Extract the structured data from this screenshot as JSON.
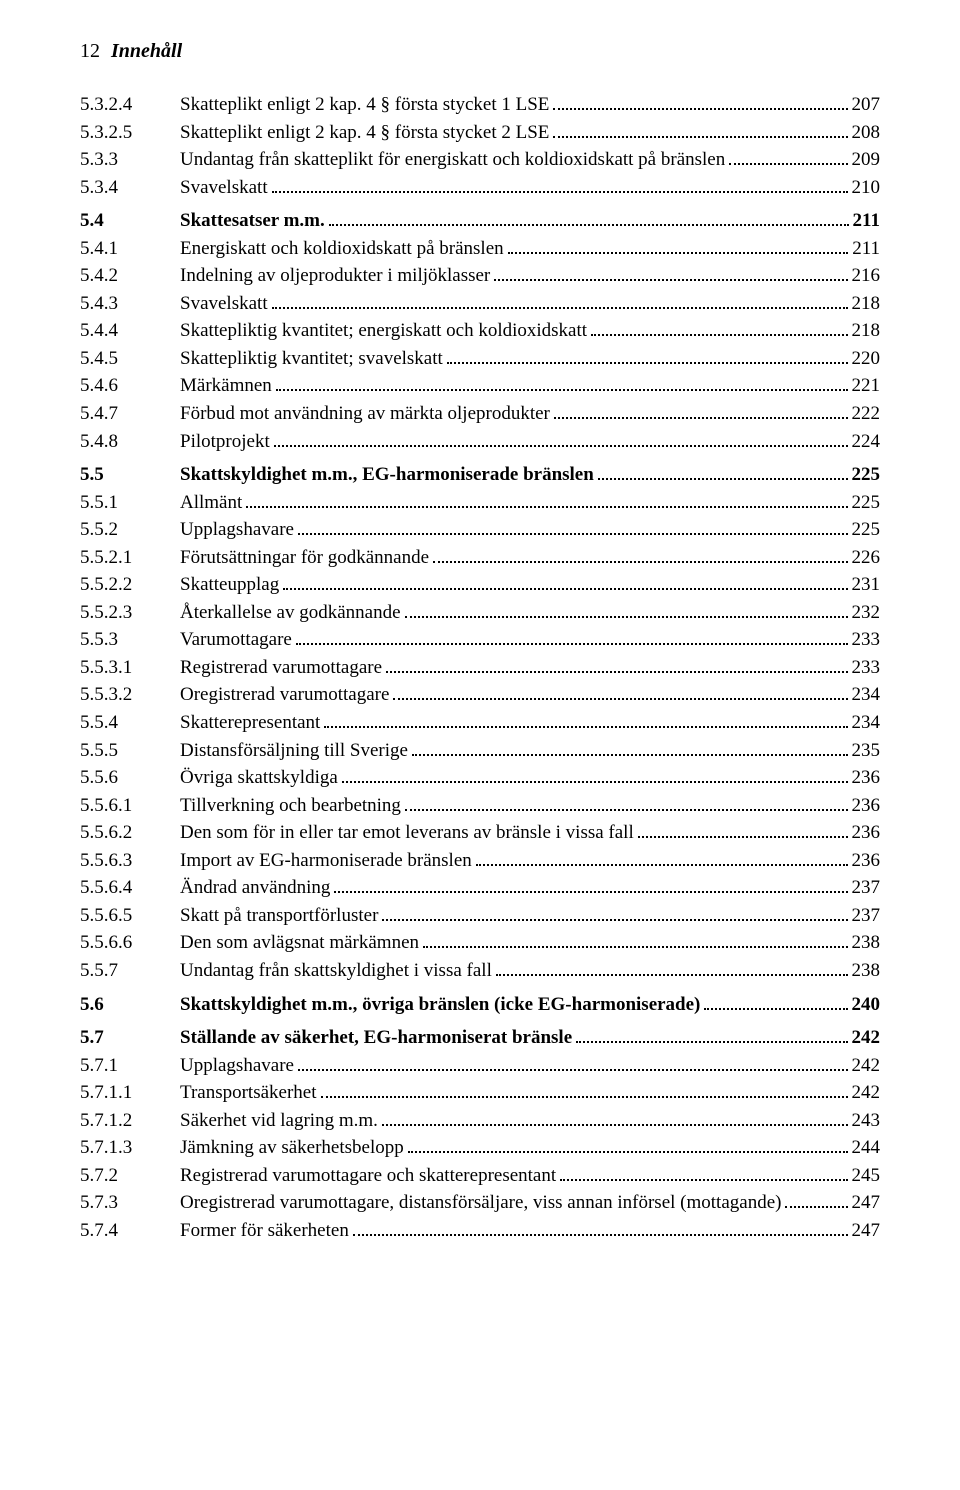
{
  "header": {
    "page_number": "12",
    "title": "Innehåll"
  },
  "toc": [
    {
      "num": "5.3.2.4",
      "title": "Skatteplikt enligt 2 kap. 4 § första stycket 1 LSE",
      "page": "207",
      "bold": false,
      "gap_before": false
    },
    {
      "num": "5.3.2.5",
      "title": "Skatteplikt enligt 2 kap. 4 § första stycket 2 LSE",
      "page": "208",
      "bold": false,
      "gap_before": false
    },
    {
      "num": "5.3.3",
      "title": "Undantag från skatteplikt för energiskatt och koldioxidskatt på bränslen",
      "page": "209",
      "bold": false,
      "gap_before": false
    },
    {
      "num": "5.3.4",
      "title": "Svavelskatt",
      "page": "210",
      "bold": false,
      "gap_before": false
    },
    {
      "num": "5.4",
      "title": "Skattesatser m.m.",
      "page": "211",
      "bold": true,
      "gap_before": true
    },
    {
      "num": "5.4.1",
      "title": "Energiskatt och koldioxidskatt på bränslen",
      "page": "211",
      "bold": false,
      "gap_before": false
    },
    {
      "num": "5.4.2",
      "title": "Indelning av oljeprodukter i miljöklasser",
      "page": "216",
      "bold": false,
      "gap_before": false
    },
    {
      "num": "5.4.3",
      "title": "Svavelskatt",
      "page": "218",
      "bold": false,
      "gap_before": false
    },
    {
      "num": "5.4.4",
      "title": "Skattepliktig kvantitet; energiskatt och koldioxidskatt",
      "page": "218",
      "bold": false,
      "gap_before": false
    },
    {
      "num": "5.4.5",
      "title": "Skattepliktig kvantitet; svavelskatt",
      "page": "220",
      "bold": false,
      "gap_before": false
    },
    {
      "num": "5.4.6",
      "title": "Märkämnen",
      "page": "221",
      "bold": false,
      "gap_before": false
    },
    {
      "num": "5.4.7",
      "title": "Förbud mot användning av märkta oljeprodukter",
      "page": "222",
      "bold": false,
      "gap_before": false
    },
    {
      "num": "5.4.8",
      "title": "Pilotprojekt",
      "page": "224",
      "bold": false,
      "gap_before": false
    },
    {
      "num": "5.5",
      "title": "Skattskyldighet m.m., EG-harmoniserade bränslen",
      "page": "225",
      "bold": true,
      "gap_before": true
    },
    {
      "num": "5.5.1",
      "title": "Allmänt",
      "page": "225",
      "bold": false,
      "gap_before": false
    },
    {
      "num": "5.5.2",
      "title": "Upplagshavare",
      "page": "225",
      "bold": false,
      "gap_before": false
    },
    {
      "num": "5.5.2.1",
      "title": "Förutsättningar för godkännande",
      "page": "226",
      "bold": false,
      "gap_before": false
    },
    {
      "num": "5.5.2.2",
      "title": "Skatteupplag",
      "page": "231",
      "bold": false,
      "gap_before": false
    },
    {
      "num": "5.5.2.3",
      "title": "Återkallelse av godkännande",
      "page": "232",
      "bold": false,
      "gap_before": false
    },
    {
      "num": "5.5.3",
      "title": "Varumottagare",
      "page": "233",
      "bold": false,
      "gap_before": false
    },
    {
      "num": "5.5.3.1",
      "title": "Registrerad varumottagare",
      "page": "233",
      "bold": false,
      "gap_before": false
    },
    {
      "num": "5.5.3.2",
      "title": "Oregistrerad varumottagare",
      "page": "234",
      "bold": false,
      "gap_before": false
    },
    {
      "num": "5.5.4",
      "title": "Skatterepresentant",
      "page": "234",
      "bold": false,
      "gap_before": false
    },
    {
      "num": "5.5.5",
      "title": "Distansförsäljning till Sverige",
      "page": "235",
      "bold": false,
      "gap_before": false
    },
    {
      "num": "5.5.6",
      "title": "Övriga skattskyldiga",
      "page": "236",
      "bold": false,
      "gap_before": false
    },
    {
      "num": "5.5.6.1",
      "title": "Tillverkning och bearbetning",
      "page": "236",
      "bold": false,
      "gap_before": false
    },
    {
      "num": "5.5.6.2",
      "title": "Den som för in eller tar emot leverans av bränsle i vissa fall",
      "page": "236",
      "bold": false,
      "gap_before": false
    },
    {
      "num": "5.5.6.3",
      "title": "Import av EG-harmoniserade bränslen",
      "page": "236",
      "bold": false,
      "gap_before": false
    },
    {
      "num": "5.5.6.4",
      "title": "Ändrad användning",
      "page": "237",
      "bold": false,
      "gap_before": false
    },
    {
      "num": "5.5.6.5",
      "title": "Skatt på transportförluster",
      "page": "237",
      "bold": false,
      "gap_before": false
    },
    {
      "num": "5.5.6.6",
      "title": "Den som avlägsnat märkämnen",
      "page": "238",
      "bold": false,
      "gap_before": false
    },
    {
      "num": "5.5.7",
      "title": "Undantag från skattskyldighet i vissa fall",
      "page": "238",
      "bold": false,
      "gap_before": false
    },
    {
      "num": "5.6",
      "title": "Skattskyldighet m.m., övriga bränslen (icke EG-harmoniserade)",
      "page": "240",
      "bold": true,
      "gap_before": true
    },
    {
      "num": "5.7",
      "title": "Ställande av säkerhet, EG-harmoniserat bränsle",
      "page": "242",
      "bold": true,
      "gap_before": true
    },
    {
      "num": "5.7.1",
      "title": "Upplagshavare",
      "page": "242",
      "bold": false,
      "gap_before": false
    },
    {
      "num": "5.7.1.1",
      "title": "Transportsäkerhet",
      "page": "242",
      "bold": false,
      "gap_before": false
    },
    {
      "num": "5.7.1.2",
      "title": "Säkerhet vid lagring m.m.",
      "page": "243",
      "bold": false,
      "gap_before": false
    },
    {
      "num": "5.7.1.3",
      "title": "Jämkning av säkerhetsbelopp",
      "page": "244",
      "bold": false,
      "gap_before": false
    },
    {
      "num": "5.7.2",
      "title": "Registrerad varumottagare och skatterepresentant",
      "page": "245",
      "bold": false,
      "gap_before": false
    },
    {
      "num": "5.7.3",
      "title": "Oregistrerad varumottagare, distansförsäljare, viss annan införsel (mottagande)",
      "page": "247",
      "bold": false,
      "gap_before": false
    },
    {
      "num": "5.7.4",
      "title": "Former för säkerheten",
      "page": "247",
      "bold": false,
      "gap_before": false
    }
  ]
}
